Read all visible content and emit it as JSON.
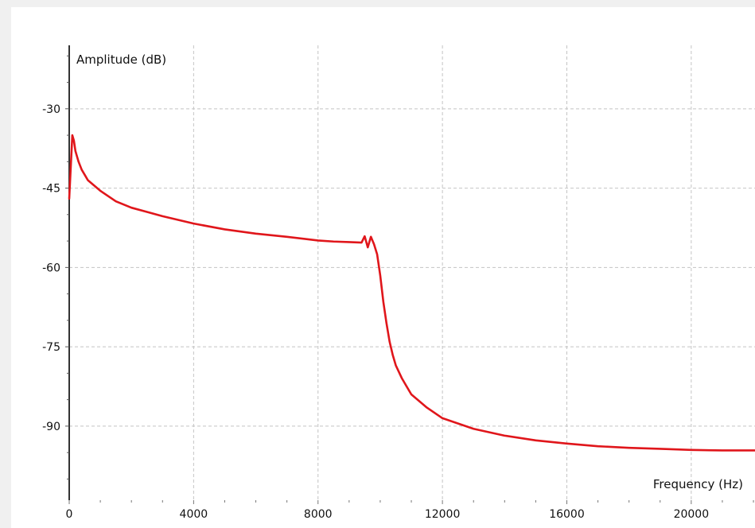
{
  "chart_data": {
    "type": "line",
    "title": "",
    "xlabel": "Frequency (Hz)",
    "ylabel": "Amplitude (dB)",
    "xlim": [
      0,
      22050
    ],
    "ylim": [
      -104,
      -18
    ],
    "grid": true,
    "x_ticks": [
      0,
      4000,
      8000,
      12000,
      16000,
      20000
    ],
    "x_tick_labels": [
      "0",
      "4000",
      "8000",
      "12000",
      "16000",
      "20000"
    ],
    "y_ticks": [
      -30,
      -45,
      -60,
      -75,
      -90
    ],
    "y_tick_labels": [
      "-30",
      "-45",
      "-60",
      "-75",
      "-90"
    ],
    "series": [
      {
        "color": "#e0161b",
        "x": [
          0,
          50,
          100,
          150,
          200,
          300,
          400,
          500,
          600,
          800,
          1000,
          1500,
          2000,
          2500,
          3000,
          3500,
          4000,
          5000,
          6000,
          7000,
          8000,
          8500,
          9000,
          9400,
          9500,
          9600,
          9700,
          9800,
          9900,
          10000,
          10100,
          10200,
          10300,
          10400,
          10500,
          10700,
          11000,
          11500,
          12000,
          13000,
          14000,
          15000,
          16000,
          17000,
          18000,
          19000,
          20000,
          21000,
          22050
        ],
        "y": [
          -47,
          -41,
          -35,
          -36,
          -38,
          -40,
          -41.5,
          -42.5,
          -43.5,
          -44.5,
          -45.5,
          -47.5,
          -48.7,
          -49.5,
          -50.3,
          -51,
          -51.7,
          -52.8,
          -53.6,
          -54.2,
          -54.9,
          -55.1,
          -55.2,
          -55.3,
          -54.1,
          -56.2,
          -54.2,
          -55.6,
          -57.5,
          -61.5,
          -66.5,
          -70.5,
          -74,
          -76.5,
          -78.5,
          -81,
          -84,
          -86.5,
          -88.5,
          -90.5,
          -91.8,
          -92.7,
          -93.3,
          -93.8,
          -94.1,
          -94.3,
          -94.5,
          -94.6,
          -94.6
        ]
      }
    ]
  }
}
